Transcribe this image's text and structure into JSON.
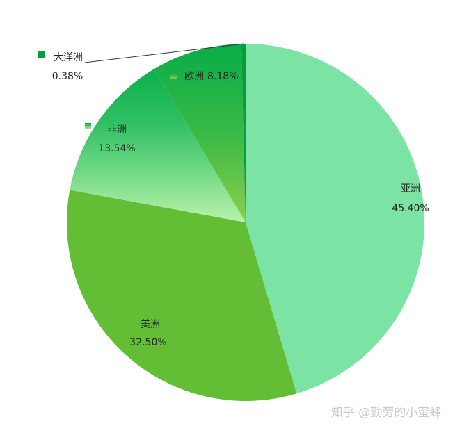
{
  "chart_data": {
    "type": "pie",
    "categories": [
      "亚洲",
      "美洲",
      "非洲",
      "欧洲",
      "大洋洲"
    ],
    "values": [
      45.4,
      32.5,
      13.54,
      8.18,
      0.38
    ],
    "value_labels": [
      "45.40%",
      "32.50%",
      "13.54%",
      "8.18%",
      "0.38%"
    ],
    "colors": [
      "#7be3a3",
      "#63be35",
      "#0bb04a",
      "#0aae48",
      "#0a9b40"
    ],
    "watermark": "知乎 @勤劳的小蜜蜂"
  }
}
